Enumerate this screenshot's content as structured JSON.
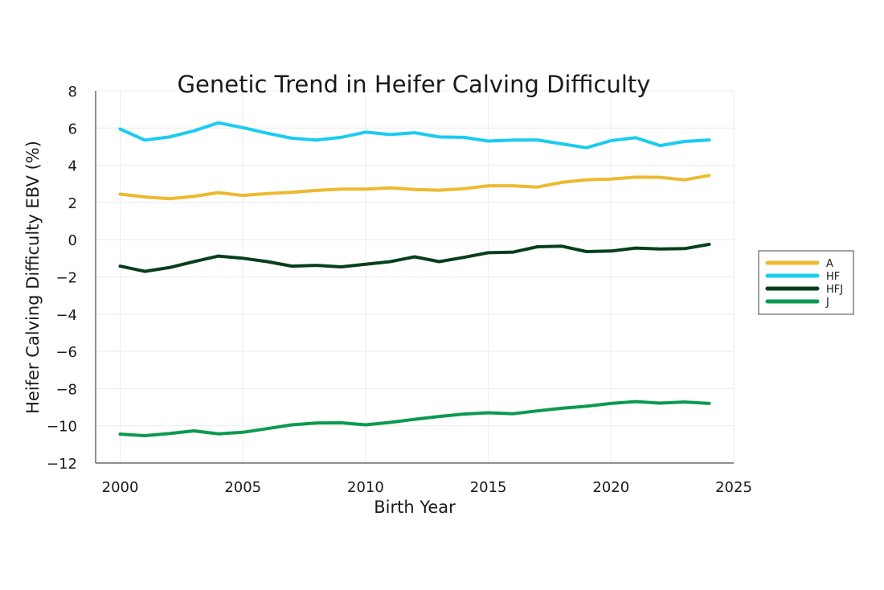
{
  "chart_data": {
    "type": "line",
    "title": "Genetic Trend in Heifer Calving Difficulty",
    "xlabel": "Birth Year",
    "ylabel": "Heifer Calving Difficulty EBV (%)",
    "xlim": [
      1999,
      2025
    ],
    "ylim": [
      -12,
      8
    ],
    "xticks": [
      2000,
      2005,
      2010,
      2015,
      2020,
      2025
    ],
    "yticks": [
      8,
      6,
      4,
      2,
      0,
      -2,
      -4,
      -6,
      -8,
      -10,
      -12
    ],
    "ytick_labels": [
      "8",
      "6",
      "4",
      "2",
      "0",
      "−2",
      "−4",
      "−6",
      "−8",
      "−10",
      "−12"
    ],
    "grid": true,
    "legend_position": "right",
    "x": [
      2000,
      2001,
      2002,
      2003,
      2004,
      2005,
      2006,
      2007,
      2008,
      2009,
      2010,
      2011,
      2012,
      2013,
      2014,
      2015,
      2016,
      2017,
      2018,
      2019,
      2020,
      2021,
      2022,
      2023,
      2024
    ],
    "series": [
      {
        "name": "A",
        "color": "#EDB92E",
        "values": [
          2.45,
          2.3,
          2.2,
          2.33,
          2.53,
          2.38,
          2.48,
          2.55,
          2.65,
          2.72,
          2.72,
          2.78,
          2.7,
          2.66,
          2.74,
          2.9,
          2.9,
          2.83,
          3.08,
          3.22,
          3.26,
          3.36,
          3.35,
          3.22,
          3.45
        ]
      },
      {
        "name": "HF",
        "color": "#1ACCF0",
        "values": [
          5.95,
          5.35,
          5.52,
          5.85,
          6.28,
          6.02,
          5.72,
          5.45,
          5.35,
          5.5,
          5.78,
          5.65,
          5.75,
          5.52,
          5.5,
          5.3,
          5.35,
          5.36,
          5.15,
          4.94,
          5.32,
          5.48,
          5.06,
          5.28,
          5.36
        ]
      },
      {
        "name": "HFJ",
        "color": "#073F1E",
        "values": [
          -1.42,
          -1.7,
          -1.5,
          -1.18,
          -0.88,
          -1.0,
          -1.18,
          -1.42,
          -1.38,
          -1.46,
          -1.32,
          -1.18,
          -0.92,
          -1.18,
          -0.95,
          -0.7,
          -0.67,
          -0.38,
          -0.35,
          -0.64,
          -0.61,
          -0.45,
          -0.5,
          -0.48,
          -0.25
        ]
      },
      {
        "name": "J",
        "color": "#0B9A4F",
        "values": [
          -10.45,
          -10.53,
          -10.42,
          -10.27,
          -10.43,
          -10.35,
          -10.15,
          -9.95,
          -9.85,
          -9.84,
          -9.95,
          -9.82,
          -9.65,
          -9.5,
          -9.37,
          -9.3,
          -9.35,
          -9.2,
          -9.06,
          -8.95,
          -8.8,
          -8.7,
          -8.78,
          -8.72,
          -8.8
        ]
      }
    ]
  }
}
